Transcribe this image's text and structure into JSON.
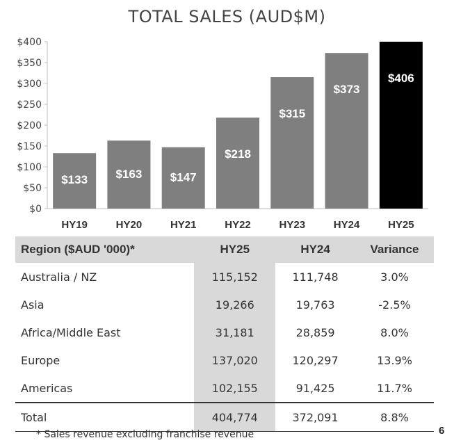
{
  "chart_data": {
    "type": "bar",
    "title": "TOTAL SALES (AUD$M)",
    "categories": [
      "HY19",
      "HY20",
      "HY21",
      "HY22",
      "HY23",
      "HY24",
      "HY25"
    ],
    "values": [
      133,
      163,
      147,
      218,
      315,
      373,
      406
    ],
    "value_labels": [
      "$133",
      "$163",
      "$147",
      "$218",
      "$315",
      "$373",
      "$406"
    ],
    "ylim": [
      0,
      400
    ],
    "yticks": [
      0,
      50,
      100,
      150,
      200,
      250,
      300,
      350,
      400
    ],
    "ytick_labels": [
      "$0",
      "$50",
      "$100",
      "$150",
      "$200",
      "$250",
      "$300",
      "$350",
      "$400"
    ],
    "colors": [
      "#7f7f7f",
      "#7f7f7f",
      "#7f7f7f",
      "#7f7f7f",
      "#7f7f7f",
      "#7f7f7f",
      "#000000"
    ],
    "xlabel": "",
    "ylabel": ""
  },
  "table": {
    "headers": [
      "Region ($AUD '000)*",
      "HY25",
      "HY24",
      "Variance"
    ],
    "rows": [
      [
        "Australia / NZ",
        "115,152",
        "111,748",
        "3.0%"
      ],
      [
        "Asia",
        "19,266",
        "19,763",
        "-2.5%"
      ],
      [
        "Africa/Middle East",
        "31,181",
        "28,859",
        "8.0%"
      ],
      [
        "Europe",
        "137,020",
        "120,297",
        "13.9%"
      ],
      [
        "Americas",
        "102,155",
        "91,425",
        "11.7%"
      ]
    ],
    "total": [
      "Total",
      "404,774",
      "372,091",
      "8.8%"
    ]
  },
  "footnote": "* Sales revenue excluding franchise revenue",
  "page_number": "6"
}
